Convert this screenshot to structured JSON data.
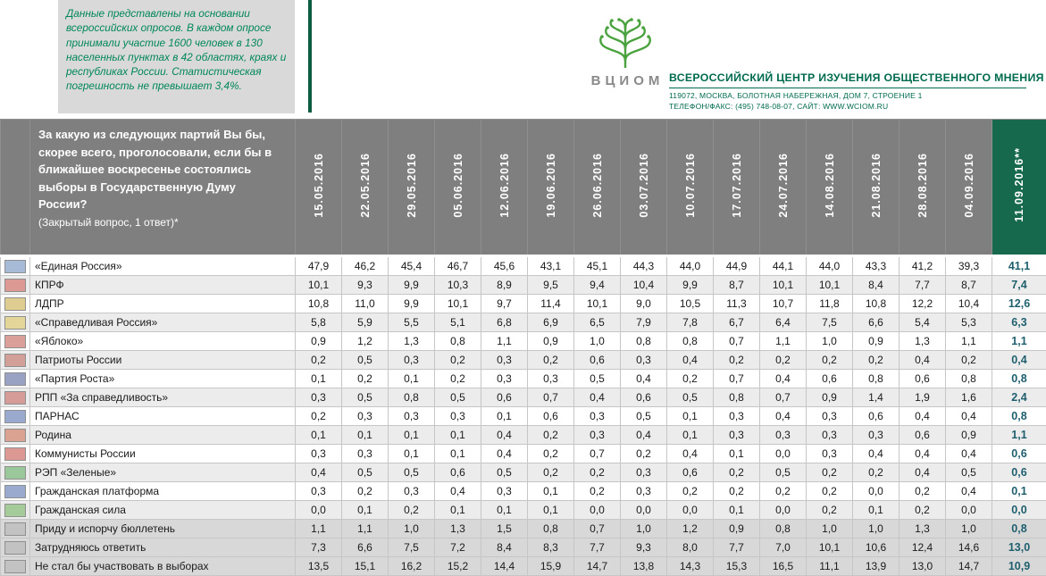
{
  "note": "Данные представлены на основании всероссийских опросов. В каждом опросе принимали участие 1600 человек в 130 населенных пунктах в 42 областях, краях и республиках России. Статистическая погрешность не превышает 3,4%.",
  "letterhead": {
    "logo_text": "ВЦИОМ",
    "org_name": "ВСЕРОССИЙСКИЙ ЦЕНТР ИЗУЧЕНИЯ ОБЩЕСТВЕННОГО МНЕНИЯ",
    "address_line1": "119072, МОСКВА, БОЛОТНАЯ НАБЕРЕЖНАЯ, ДОМ 7, СТРОЕНИЕ 1",
    "address_line2": "ТЕЛЕФОН/ФАКС: (495) 748-08-07, САЙТ: WWW.WCIOM.RU"
  },
  "colors": {
    "header_gray": "#7f7f7f",
    "forecast_header_green": "#17694e",
    "brand_green": "#006b4f",
    "note_green": "#008759",
    "forecast_value_teal": "#1e5f6e",
    "zebra_row_gray": "#ececec",
    "summary_row_gray": "#d8d8d8",
    "note_box_gray": "#d9d9d9"
  },
  "table": {
    "question": "За какую из следующих партий Вы бы, скорее всего, проголосовали, если бы в ближайшее воскресенье состоялись выборы в Государственную Думу России?",
    "question_note": "(Закрытый вопрос, 1 ответ)*",
    "dates": [
      "15.05.2016",
      "22.05.2016",
      "29.05.2016",
      "05.06.2016",
      "12.06.2016",
      "19.06.2016",
      "26.06.2016",
      "03.07.2016",
      "10.07.2016",
      "17.07.2016",
      "24.07.2016",
      "14.08.2016",
      "21.08.2016",
      "28.08.2016",
      "04.09.2016"
    ],
    "highlight_date": "11.09.2016**",
    "rows": [
      {
        "label": "«Единая Россия»",
        "logo_tint": "#5b82b8",
        "values": [
          "47,9",
          "46,2",
          "45,4",
          "46,7",
          "45,6",
          "43,1",
          "45,1",
          "44,3",
          "44,0",
          "44,9",
          "44,1",
          "44,0",
          "43,3",
          "41,2",
          "39,3"
        ],
        "final": "41,1"
      },
      {
        "label": "КПРФ",
        "logo_tint": "#c43d33",
        "values": [
          "10,1",
          "9,3",
          "9,9",
          "10,3",
          "8,9",
          "9,5",
          "9,4",
          "10,4",
          "9,9",
          "8,7",
          "10,1",
          "10,1",
          "8,4",
          "7,7",
          "8,7"
        ],
        "final": "7,4"
      },
      {
        "label": "ЛДПР",
        "logo_tint": "#caa32d",
        "values": [
          "10,8",
          "11,0",
          "9,9",
          "10,1",
          "9,7",
          "11,4",
          "10,1",
          "9,0",
          "10,5",
          "11,3",
          "10,7",
          "11,8",
          "10,8",
          "12,2",
          "10,4"
        ],
        "final": "12,6"
      },
      {
        "label": "«Справедливая Россия»",
        "logo_tint": "#d4b83e",
        "values": [
          "5,8",
          "5,9",
          "5,5",
          "5,1",
          "6,8",
          "6,9",
          "6,5",
          "7,9",
          "7,8",
          "6,7",
          "6,4",
          "7,5",
          "6,6",
          "5,4",
          "5,3"
        ],
        "final": "6,3"
      },
      {
        "label": "«Яблоко»",
        "logo_tint": "#bf4a3c",
        "values": [
          "0,9",
          "1,2",
          "1,3",
          "0,8",
          "1,1",
          "0,9",
          "1,0",
          "0,8",
          "0,8",
          "0,7",
          "1,1",
          "1,0",
          "0,9",
          "1,3",
          "1,1"
        ],
        "final": "1,1"
      },
      {
        "label": "Патриоты России",
        "logo_tint": "#b24a3e",
        "values": [
          "0,2",
          "0,5",
          "0,3",
          "0,2",
          "0,3",
          "0,2",
          "0,6",
          "0,3",
          "0,4",
          "0,2",
          "0,2",
          "0,2",
          "0,2",
          "0,4",
          "0,2"
        ],
        "final": "0,4"
      },
      {
        "label": "«Партия Роста»",
        "logo_tint": "#3d4f8f",
        "values": [
          "0,1",
          "0,2",
          "0,1",
          "0,2",
          "0,3",
          "0,3",
          "0,5",
          "0,4",
          "0,2",
          "0,7",
          "0,4",
          "0,6",
          "0,8",
          "0,6",
          "0,8"
        ],
        "final": "0,8"
      },
      {
        "label": "РПП «За справедливость»",
        "logo_tint": "#b8433a",
        "values": [
          "0,3",
          "0,5",
          "0,8",
          "0,5",
          "0,6",
          "0,7",
          "0,4",
          "0,6",
          "0,5",
          "0,8",
          "0,7",
          "0,9",
          "1,4",
          "1,9",
          "1,6"
        ],
        "final": "2,4"
      },
      {
        "label": "ПАРНАС",
        "logo_tint": "#3e5fa8",
        "values": [
          "0,2",
          "0,3",
          "0,3",
          "0,3",
          "0,1",
          "0,6",
          "0,3",
          "0,5",
          "0,1",
          "0,3",
          "0,4",
          "0,3",
          "0,6",
          "0,4",
          "0,4"
        ],
        "final": "0,8"
      },
      {
        "label": "Родина",
        "logo_tint": "#c0522e",
        "values": [
          "0,1",
          "0,1",
          "0,1",
          "0,1",
          "0,4",
          "0,2",
          "0,3",
          "0,4",
          "0,1",
          "0,3",
          "0,3",
          "0,3",
          "0,3",
          "0,6",
          "0,9"
        ],
        "final": "1,1"
      },
      {
        "label": "Коммунисты России",
        "logo_tint": "#c43d33",
        "values": [
          "0,3",
          "0,3",
          "0,1",
          "0,1",
          "0,4",
          "0,2",
          "0,7",
          "0,2",
          "0,4",
          "0,1",
          "0,0",
          "0,3",
          "0,4",
          "0,4",
          "0,4"
        ],
        "final": "0,6"
      },
      {
        "label": "РЭП «Зеленые»",
        "logo_tint": "#3f9c3f",
        "values": [
          "0,4",
          "0,5",
          "0,5",
          "0,6",
          "0,5",
          "0,2",
          "0,2",
          "0,3",
          "0,6",
          "0,2",
          "0,5",
          "0,2",
          "0,2",
          "0,4",
          "0,5"
        ],
        "final": "0,6"
      },
      {
        "label": "Гражданская платформа",
        "logo_tint": "#3e5fa8",
        "values": [
          "0,3",
          "0,2",
          "0,3",
          "0,4",
          "0,3",
          "0,1",
          "0,2",
          "0,3",
          "0,2",
          "0,2",
          "0,2",
          "0,2",
          "0,0",
          "0,2",
          "0,4"
        ],
        "final": "0,1"
      },
      {
        "label": "Гражданская сила",
        "logo_tint": "#58a23f",
        "values": [
          "0,0",
          "0,1",
          "0,2",
          "0,1",
          "0,1",
          "0,1",
          "0,0",
          "0,0",
          "0,0",
          "0,1",
          "0,0",
          "0,2",
          "0,1",
          "0,2",
          "0,0"
        ],
        "final": "0,0"
      },
      {
        "label": "Приду и испорчу бюллетень",
        "logo_tint": "#8f8f8f",
        "values": [
          "1,1",
          "1,1",
          "1,0",
          "1,3",
          "1,5",
          "0,8",
          "0,7",
          "1,0",
          "1,2",
          "0,9",
          "0,8",
          "1,0",
          "1,0",
          "1,3",
          "1,0"
        ],
        "final": "0,8"
      },
      {
        "label": "Затрудняюсь ответить",
        "logo_tint": "#8f8f8f",
        "values": [
          "7,3",
          "6,6",
          "7,5",
          "7,2",
          "8,4",
          "8,3",
          "7,7",
          "9,3",
          "8,0",
          "7,7",
          "7,0",
          "10,1",
          "10,6",
          "12,4",
          "14,6"
        ],
        "final": "13,0"
      },
      {
        "label": "Не стал бы участвовать в выборах",
        "logo_tint": "#8f8f8f",
        "values": [
          "13,5",
          "15,1",
          "16,2",
          "15,2",
          "14,4",
          "15,9",
          "14,7",
          "13,8",
          "14,3",
          "15,3",
          "16,5",
          "11,1",
          "13,9",
          "13,0",
          "14,7"
        ],
        "final": "10,9"
      }
    ]
  }
}
